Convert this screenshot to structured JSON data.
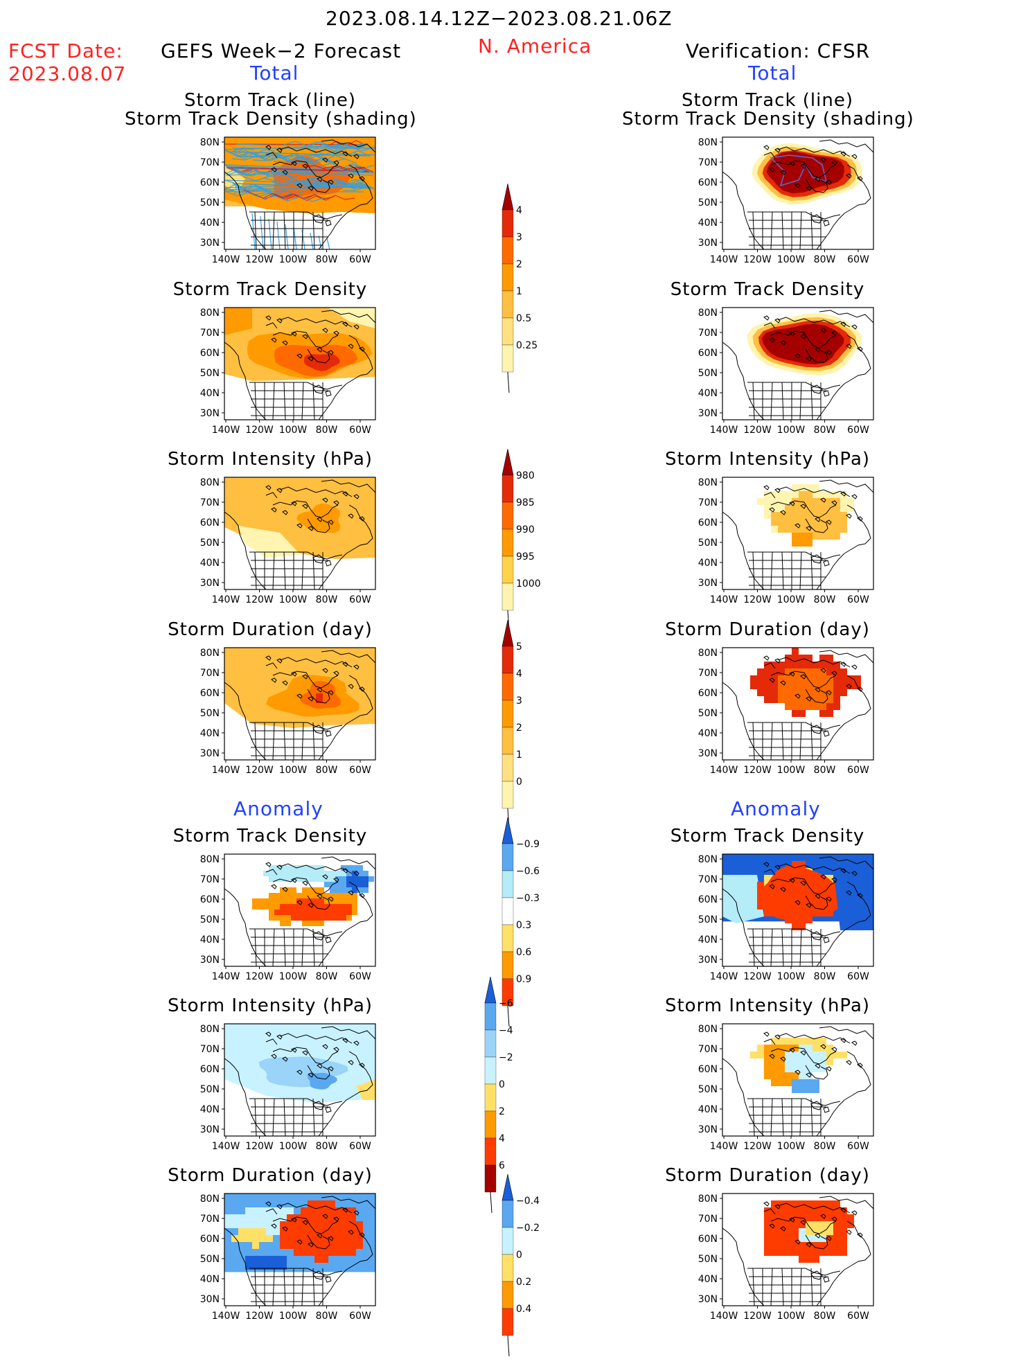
{
  "header": {
    "period": "2023.08.14.12Z−2023.08.21.06Z",
    "fcst_label": "FCST Date:",
    "fcst_date": "2023.08.07",
    "left_title": "GEFS Week−2 Forecast",
    "region": "N. America",
    "right_title": "Verification: CFSR"
  },
  "sections": {
    "total": "Total",
    "anomaly": "Anomaly"
  },
  "panels": [
    {
      "id": "fc-track",
      "title1": "Storm Track (line)",
      "title2": "Storm Track Density (shading)"
    },
    {
      "id": "vf-track",
      "title1": "Storm Track (line)",
      "title2": "Storm Track Density (shading)"
    },
    {
      "id": "fc-density",
      "title1": "Storm Track Density",
      "title2": ""
    },
    {
      "id": "vf-density",
      "title1": "Storm Track Density",
      "title2": ""
    },
    {
      "id": "fc-intensity",
      "title1": "Storm Intensity (hPa)",
      "title2": ""
    },
    {
      "id": "vf-intensity",
      "title1": "Storm Intensity (hPa)",
      "title2": ""
    },
    {
      "id": "fc-duration",
      "title1": "Storm Duration (day)",
      "title2": ""
    },
    {
      "id": "vf-duration",
      "title1": "Storm Duration (day)",
      "title2": ""
    },
    {
      "id": "fc-an-density",
      "title1": "Storm Track Density",
      "title2": ""
    },
    {
      "id": "vf-an-density",
      "title1": "Storm Track Density",
      "title2": ""
    },
    {
      "id": "fc-an-intensity",
      "title1": "Storm Intensity (hPa)",
      "title2": ""
    },
    {
      "id": "vf-an-intensity",
      "title1": "Storm Intensity (hPa)",
      "title2": ""
    },
    {
      "id": "fc-an-duration",
      "title1": "Storm Duration (day)",
      "title2": ""
    },
    {
      "id": "vf-an-duration",
      "title1": "Storm Duration (day)",
      "title2": ""
    }
  ],
  "axes": {
    "lat_ticks": [
      "30N",
      "40N",
      "50N",
      "60N",
      "70N",
      "80N"
    ],
    "lon_ticks": [
      "140W",
      "120W",
      "100W",
      "80W",
      "60W"
    ]
  },
  "colorbars": {
    "density": {
      "labels": [
        "0.25",
        "0.5",
        "1",
        "2",
        "3",
        "4"
      ],
      "colors": [
        "#fff4b0",
        "#ffe080",
        "#ffbf40",
        "#ff9a00",
        "#ff6a00",
        "#e52a0a",
        "#a50000"
      ]
    },
    "intensity": {
      "labels": [
        "1000",
        "995",
        "990",
        "985",
        "980"
      ],
      "colors": [
        "#fff4b0",
        "#ffd24a",
        "#ff9a00",
        "#ff6a00",
        "#e52a0a",
        "#a50000"
      ]
    },
    "duration": {
      "labels": [
        "0",
        "1",
        "2",
        "3",
        "4",
        "5"
      ],
      "colors": [
        "#fff4b0",
        "#ffe080",
        "#ffbf40",
        "#ff9a00",
        "#ff6a00",
        "#e52a0a",
        "#a50000"
      ]
    },
    "an_density": {
      "labels": [
        "0.9",
        "0.6",
        "0.3",
        "−0.3",
        "−0.6",
        "−0.9"
      ],
      "colors": [
        "#ff3c00",
        "#ff9a00",
        "#ffe066",
        "#ffffff",
        "#b4ecf8",
        "#5aa8f0",
        "#1a5fd8"
      ]
    },
    "an_intensity": {
      "labels": [
        "6",
        "4",
        "2",
        "0",
        "−2",
        "−4",
        "−6"
      ],
      "colors": [
        "#a50000",
        "#ff3c00",
        "#ff9a00",
        "#ffe066",
        "#c8f2ff",
        "#9ad4f8",
        "#5aa8f0",
        "#1a5fd8"
      ]
    },
    "an_duration": {
      "labels": [
        "0.4",
        "0.2",
        "0",
        "−0.2",
        "−0.4"
      ],
      "colors": [
        "#ff3c00",
        "#ff9a00",
        "#ffe066",
        "#c8f2ff",
        "#5aa8f0",
        "#1a5fd8"
      ]
    }
  },
  "colors": {
    "title_red": "#ff2020",
    "section_blue": "#2040ff"
  }
}
